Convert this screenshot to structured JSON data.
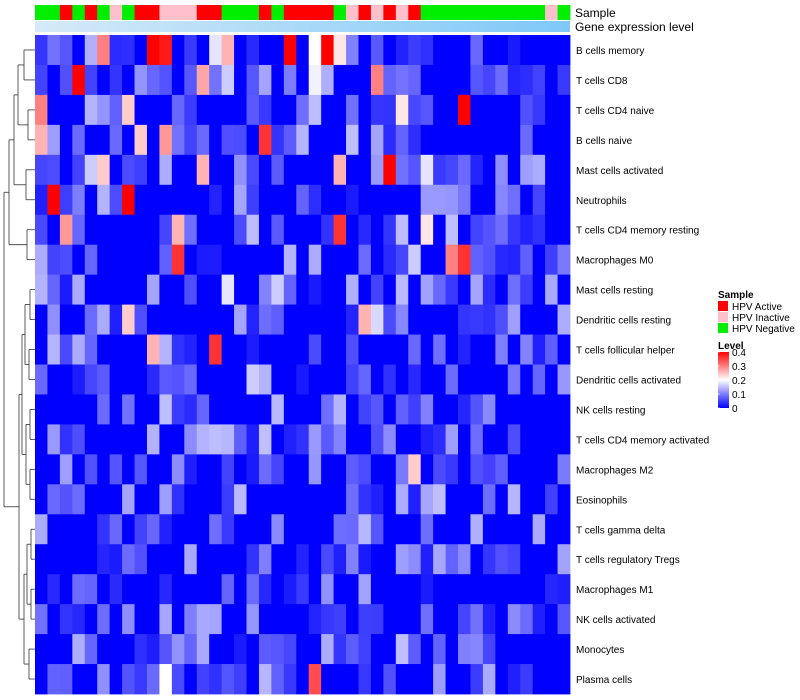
{
  "chart_data": {
    "type": "heatmap",
    "annotation_tracks": [
      "Sample",
      "Gene expression level"
    ],
    "sample_groups": [
      "Negative",
      "Negative",
      "Active",
      "Negative",
      "Active",
      "Negative",
      "Inactive",
      "Negative",
      "Active",
      "Active",
      "Inactive",
      "Inactive",
      "Inactive",
      "Active",
      "Active",
      "Negative",
      "Negative",
      "Negative",
      "Active",
      "Negative",
      "Active",
      "Active",
      "Active",
      "Active",
      "Negative",
      "Inactive",
      "Active",
      "Inactive",
      "Active",
      "Inactive",
      "Active",
      "Negative",
      "Negative",
      "Negative",
      "Negative",
      "Negative",
      "Negative",
      "Negative",
      "Negative",
      "Negative",
      "Negative",
      "Inactive",
      "Negative"
    ],
    "sample_colors": {
      "Active": "#ff0000",
      "Inactive": "#ffc0cb",
      "Negative": "#00ee00"
    },
    "expression_gradient": [
      "#d6eaf8",
      "#7ec8f8"
    ],
    "rows": [
      "B cells memory",
      "T cells CD8",
      "T cells CD4 naive",
      "B cells naive",
      "Mast cells activated",
      "Neutrophils",
      "T cells CD4 memory resting",
      "Macrophages M0",
      "Mast cells resting",
      "Dendritic cells resting",
      "T cells follicular helper",
      "Dendritic cells activated",
      "NK cells resting",
      "T cells CD4 memory activated",
      "Macrophages M2",
      "Eosinophils",
      "T cells gamma delta",
      "T cells regulatory  Tregs",
      "Macrophages M1",
      "NK cells activated",
      "Monocytes",
      "Plasma cells"
    ],
    "value_range": [
      0,
      0.4
    ],
    "highlights": [
      {
        "row": 0,
        "col": 5,
        "v": 0.3
      },
      {
        "row": 0,
        "col": 9,
        "v": 0.4
      },
      {
        "row": 0,
        "col": 10,
        "v": 0.38
      },
      {
        "row": 0,
        "col": 14,
        "v": 0.18
      },
      {
        "row": 0,
        "col": 15,
        "v": 0.26
      },
      {
        "row": 0,
        "col": 20,
        "v": 0.4
      },
      {
        "row": 0,
        "col": 22,
        "v": 0.2
      },
      {
        "row": 0,
        "col": 23,
        "v": 0.4
      },
      {
        "row": 0,
        "col": 24,
        "v": 0.22
      },
      {
        "row": 1,
        "col": 3,
        "v": 0.4
      },
      {
        "row": 1,
        "col": 13,
        "v": 0.27
      },
      {
        "row": 1,
        "col": 15,
        "v": 0.16
      },
      {
        "row": 1,
        "col": 22,
        "v": 0.19
      },
      {
        "row": 1,
        "col": 27,
        "v": 0.3
      },
      {
        "row": 2,
        "col": 0,
        "v": 0.3
      },
      {
        "row": 2,
        "col": 4,
        "v": 0.14
      },
      {
        "row": 2,
        "col": 7,
        "v": 0.24
      },
      {
        "row": 2,
        "col": 29,
        "v": 0.22
      },
      {
        "row": 2,
        "col": 34,
        "v": 0.4
      },
      {
        "row": 3,
        "col": 0,
        "v": 0.26
      },
      {
        "row": 3,
        "col": 8,
        "v": 0.24
      },
      {
        "row": 3,
        "col": 10,
        "v": 0.28
      },
      {
        "row": 3,
        "col": 18,
        "v": 0.36
      },
      {
        "row": 3,
        "col": 25,
        "v": 0.15
      },
      {
        "row": 4,
        "col": 4,
        "v": 0.16
      },
      {
        "row": 4,
        "col": 5,
        "v": 0.24
      },
      {
        "row": 4,
        "col": 13,
        "v": 0.26
      },
      {
        "row": 4,
        "col": 24,
        "v": 0.26
      },
      {
        "row": 4,
        "col": 28,
        "v": 0.4
      },
      {
        "row": 4,
        "col": 31,
        "v": 0.18
      },
      {
        "row": 5,
        "col": 1,
        "v": 0.4
      },
      {
        "row": 5,
        "col": 5,
        "v": 0.14
      },
      {
        "row": 5,
        "col": 7,
        "v": 0.4
      },
      {
        "row": 5,
        "col": 31,
        "v": 0.12
      },
      {
        "row": 5,
        "col": 32,
        "v": 0.12
      },
      {
        "row": 6,
        "col": 2,
        "v": 0.28
      },
      {
        "row": 6,
        "col": 11,
        "v": 0.26
      },
      {
        "row": 6,
        "col": 24,
        "v": 0.36
      },
      {
        "row": 6,
        "col": 31,
        "v": 0.22
      },
      {
        "row": 6,
        "col": 33,
        "v": 0.15
      },
      {
        "row": 7,
        "col": 11,
        "v": 0.36
      },
      {
        "row": 7,
        "col": 30,
        "v": 0.16
      },
      {
        "row": 7,
        "col": 33,
        "v": 0.3
      },
      {
        "row": 7,
        "col": 34,
        "v": 0.36
      },
      {
        "row": 8,
        "col": 0,
        "v": 0.14
      },
      {
        "row": 8,
        "col": 15,
        "v": 0.18
      },
      {
        "row": 8,
        "col": 19,
        "v": 0.16
      },
      {
        "row": 9,
        "col": 7,
        "v": 0.24
      },
      {
        "row": 9,
        "col": 26,
        "v": 0.26
      },
      {
        "row": 9,
        "col": 27,
        "v": 0.17
      },
      {
        "row": 10,
        "col": 9,
        "v": 0.26
      },
      {
        "row": 10,
        "col": 10,
        "v": 0.14
      },
      {
        "row": 10,
        "col": 14,
        "v": 0.36
      },
      {
        "row": 11,
        "col": 17,
        "v": 0.16
      },
      {
        "row": 11,
        "col": 18,
        "v": 0.14
      },
      {
        "row": 12,
        "col": 10,
        "v": 0.15
      },
      {
        "row": 12,
        "col": 24,
        "v": 0.14
      },
      {
        "row": 13,
        "col": 1,
        "v": 0.12
      },
      {
        "row": 13,
        "col": 13,
        "v": 0.14
      },
      {
        "row": 13,
        "col": 18,
        "v": 0.15
      },
      {
        "row": 14,
        "col": 30,
        "v": 0.24
      },
      {
        "row": 15,
        "col": 31,
        "v": 0.13
      },
      {
        "row": 15,
        "col": 32,
        "v": 0.15
      },
      {
        "row": 21,
        "col": 10,
        "v": 0.2
      },
      {
        "row": 21,
        "col": 22,
        "v": 0.34
      }
    ],
    "legend": {
      "sample_title": "Sample",
      "sample_items": [
        {
          "label": "HPV Active",
          "color": "#ff0000"
        },
        {
          "label": "HPV Inactive",
          "color": "#ffc0cb"
        },
        {
          "label": "HPV Negative",
          "color": "#00ee00"
        }
      ],
      "level_title": "Level",
      "level_ticks": [
        "0.4",
        "0.3",
        "0.2",
        "0.1",
        "0"
      ],
      "level_colors": [
        "#ff0000",
        "#ffffff",
        "#0000ff"
      ]
    }
  }
}
